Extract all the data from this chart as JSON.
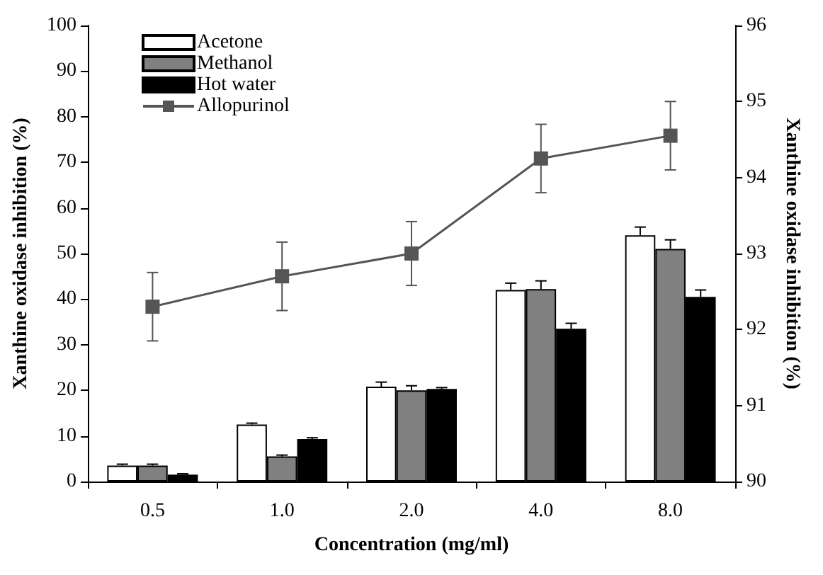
{
  "chart_data": {
    "type": "bar",
    "xlabel": "Concentration (mg/ml)",
    "ylabel": "Xanthine oxidase inhibition (%)",
    "y2label": "Xanthine oxidase inhibition (%)",
    "categories": [
      "0.5",
      "1.0",
      "2.0",
      "4.0",
      "8.0"
    ],
    "series": [
      {
        "name": "Acetone",
        "color": "#ffffff",
        "values": [
          3.5,
          12.5,
          20.8,
          42,
          54
        ],
        "errors": [
          0.3,
          0.3,
          1,
          1.5,
          1.8
        ]
      },
      {
        "name": "Methanol",
        "color": "#808080",
        "values": [
          3.5,
          5.5,
          20,
          42.2,
          51
        ],
        "errors": [
          0.3,
          0.3,
          1,
          1.8,
          2
        ]
      },
      {
        "name": "Hot water",
        "color": "#000000",
        "values": [
          1.5,
          9.3,
          20.3,
          33.5,
          40.5
        ],
        "errors": [
          0.2,
          0.3,
          0.3,
          1.2,
          1.5
        ]
      },
      {
        "name": "Allopurinol",
        "type": "line",
        "axis": "y2",
        "color": "#555555",
        "marker": "square",
        "values": [
          92.3,
          92.7,
          93.0,
          94.25,
          94.55
        ],
        "errors": [
          0.45,
          0.45,
          0.42,
          0.45,
          0.45
        ]
      }
    ],
    "ylim": [
      0,
      100
    ],
    "yticks": [
      0,
      10,
      20,
      30,
      40,
      50,
      60,
      70,
      80,
      90,
      100
    ],
    "y2lim": [
      90,
      96
    ],
    "y2ticks": [
      90,
      91,
      92,
      93,
      94,
      95,
      96
    ],
    "grid": false,
    "legend": "top left"
  }
}
